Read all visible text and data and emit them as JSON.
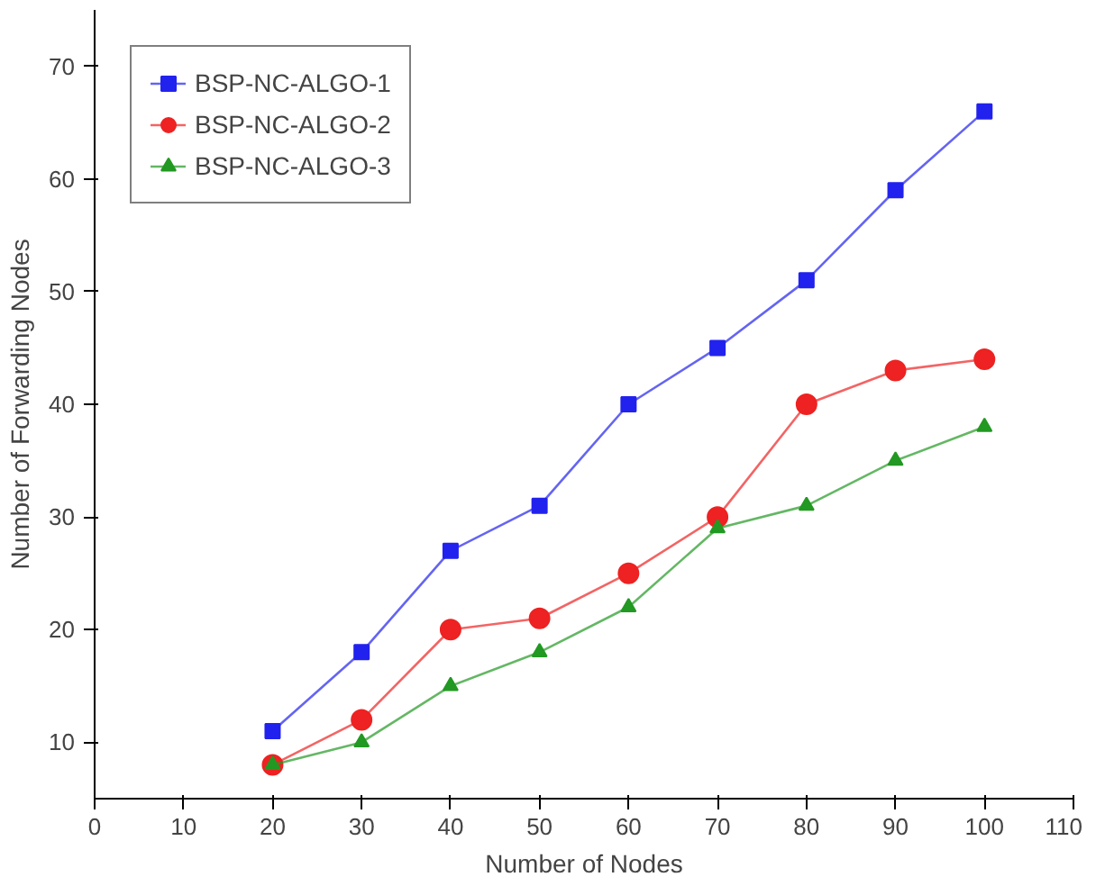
{
  "chart_data": {
    "type": "line",
    "xlabel": "Number of Nodes",
    "ylabel": "Number of Forwarding Nodes",
    "x": [
      20,
      30,
      40,
      50,
      60,
      70,
      80,
      90,
      100
    ],
    "series": [
      {
        "name": "BSP-NC-ALGO-1",
        "color": "#2222ee",
        "marker": "square",
        "values": [
          11,
          18,
          27,
          31,
          40,
          45,
          51,
          59,
          66
        ]
      },
      {
        "name": "BSP-NC-ALGO-2",
        "color": "#ee2222",
        "marker": "circle",
        "values": [
          8,
          12,
          20,
          21,
          25,
          30,
          40,
          43,
          44
        ]
      },
      {
        "name": "BSP-NC-ALGO-3",
        "color": "#229922",
        "marker": "triangle",
        "values": [
          8,
          10,
          15,
          18,
          22,
          29,
          31,
          35,
          38
        ]
      }
    ],
    "xlim": [
      0,
      110
    ],
    "xticks": [
      0,
      10,
      20,
      30,
      40,
      50,
      60,
      70,
      80,
      90,
      100,
      110
    ],
    "ylim": [
      5,
      75
    ],
    "yticks": [
      10,
      20,
      30,
      40,
      50,
      60,
      70
    ],
    "grid": false,
    "legend": "top left",
    "line_style": "solid"
  }
}
